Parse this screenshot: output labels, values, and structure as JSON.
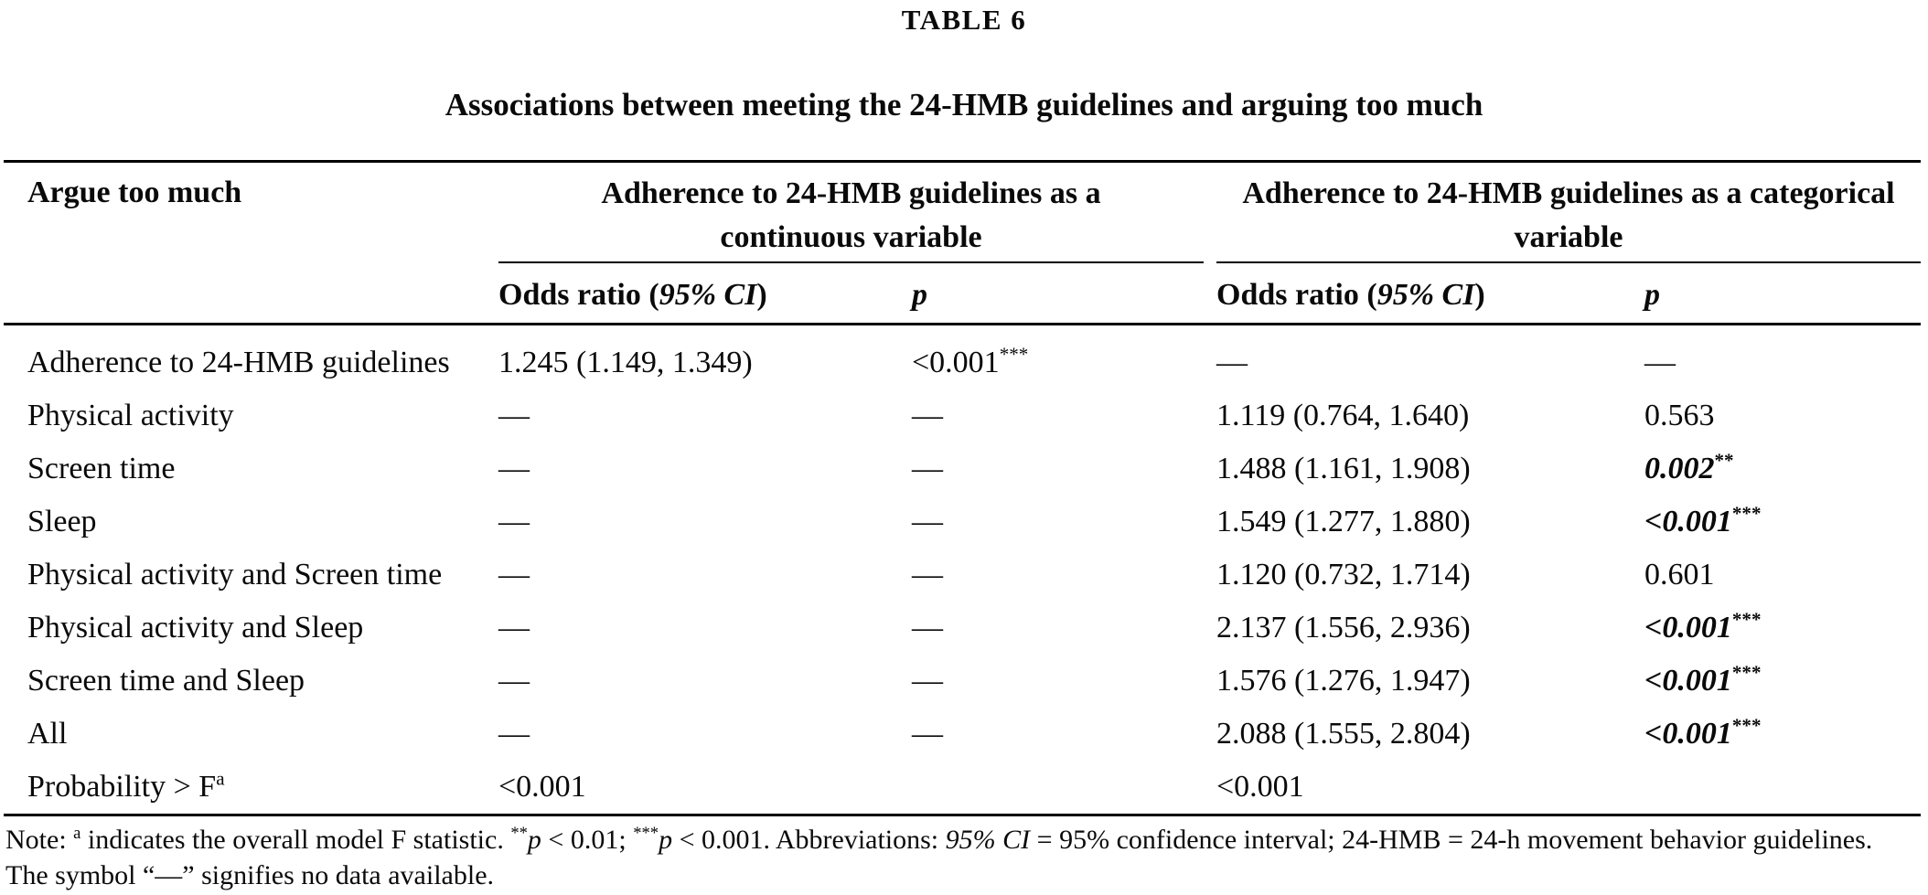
{
  "page": {
    "label": "TABLE 6",
    "caption": "Associations between meeting the 24-HMB guidelines and arguing too much"
  },
  "table": {
    "stub_header": "Argue too much",
    "group_continuous": {
      "line1": "Adherence to 24-HMB guidelines as a",
      "line2": "continuous variable"
    },
    "group_categorical": {
      "line1": "Adherence to 24-HMB guidelines as a categorical",
      "line2": "variable"
    },
    "subheader": {
      "or_prefix": "Odds ratio (",
      "or_ci": "95% CI",
      "or_suffix": ")",
      "p": "p"
    },
    "no_data_symbol": "—",
    "rows": [
      {
        "label": "Adherence to 24-HMB guidelines",
        "label_sup": "",
        "cont_or": "1.245 (1.149, 1.349)",
        "cont_p": {
          "text": "<0.001",
          "sup": "***",
          "emph": false
        },
        "cat_or": "—",
        "cat_p": {
          "text": "—",
          "sup": "",
          "emph": false
        }
      },
      {
        "label": "Physical activity",
        "label_sup": "",
        "cont_or": "—",
        "cont_p": {
          "text": "—",
          "sup": "",
          "emph": false
        },
        "cat_or": "1.119 (0.764, 1.640)",
        "cat_p": {
          "text": "0.563",
          "sup": "",
          "emph": false
        }
      },
      {
        "label": "Screen time",
        "label_sup": "",
        "cont_or": "—",
        "cont_p": {
          "text": "—",
          "sup": "",
          "emph": false
        },
        "cat_or": "1.488 (1.161, 1.908)",
        "cat_p": {
          "text": "0.002",
          "sup": "**",
          "emph": true
        }
      },
      {
        "label": "Sleep",
        "label_sup": "",
        "cont_or": "—",
        "cont_p": {
          "text": "—",
          "sup": "",
          "emph": false
        },
        "cat_or": "1.549 (1.277, 1.880)",
        "cat_p": {
          "text": "<0.001",
          "sup": "***",
          "emph": true
        }
      },
      {
        "label": "Physical activity and Screen time",
        "label_sup": "",
        "cont_or": "—",
        "cont_p": {
          "text": "—",
          "sup": "",
          "emph": false
        },
        "cat_or": "1.120 (0.732, 1.714)",
        "cat_p": {
          "text": "0.601",
          "sup": "",
          "emph": false
        }
      },
      {
        "label": "Physical activity and Sleep",
        "label_sup": "",
        "cont_or": "—",
        "cont_p": {
          "text": "—",
          "sup": "",
          "emph": false
        },
        "cat_or": "2.137 (1.556, 2.936)",
        "cat_p": {
          "text": "<0.001",
          "sup": "***",
          "emph": true
        }
      },
      {
        "label": "Screen time and Sleep",
        "label_sup": "",
        "cont_or": "—",
        "cont_p": {
          "text": "—",
          "sup": "",
          "emph": false
        },
        "cat_or": "1.576 (1.276, 1.947)",
        "cat_p": {
          "text": "<0.001",
          "sup": "***",
          "emph": true
        }
      },
      {
        "label": "All",
        "label_sup": "",
        "cont_or": "—",
        "cont_p": {
          "text": "—",
          "sup": "",
          "emph": false
        },
        "cat_or": "2.088 (1.555, 2.804)",
        "cat_p": {
          "text": "<0.001",
          "sup": "***",
          "emph": true
        }
      },
      {
        "label": "Probability > F",
        "label_sup": "a",
        "cont_or": "<0.001",
        "cont_p": {
          "text": "",
          "sup": "",
          "emph": false
        },
        "cat_or": "<0.001",
        "cat_p": {
          "text": "",
          "sup": "",
          "emph": false
        }
      }
    ],
    "note_segments": [
      {
        "t": "Note: "
      },
      {
        "t": "a",
        "s": "sup"
      },
      {
        "t": " indicates the overall model F statistic. "
      },
      {
        "t": "**",
        "s": "sup"
      },
      {
        "t": "p",
        "s": "i"
      },
      {
        "t": " < 0.01; "
      },
      {
        "t": "***",
        "s": "sup"
      },
      {
        "t": "p",
        "s": "i"
      },
      {
        "t": " < 0.001. Abbreviations: "
      },
      {
        "t": "95% CI",
        "s": "i"
      },
      {
        "t": " = 95% confidence interval; 24-HMB = 24-h movement behavior guidelines. The symbol “—” signifies no data available."
      }
    ]
  }
}
